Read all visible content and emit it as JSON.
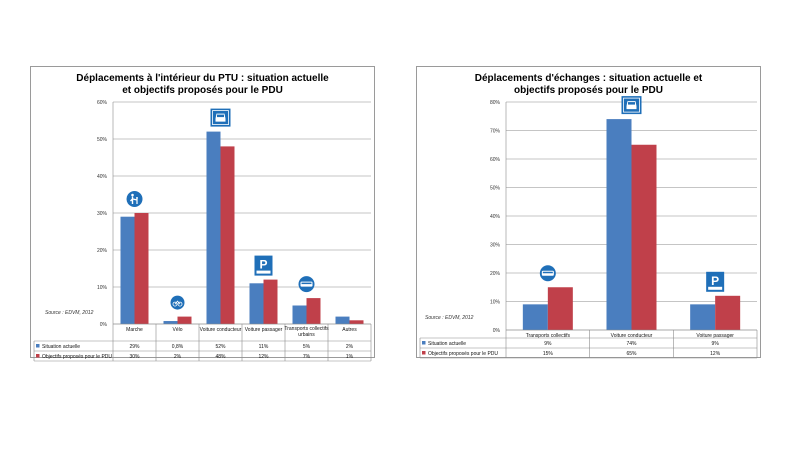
{
  "colors": {
    "situation": "#4a7ebf",
    "objectifs": "#c0404a",
    "grid": "#8c8c8c",
    "sign": "#1f6fb8"
  },
  "chart_data": [
    {
      "type": "bar",
      "title": "Déplacements à l'intérieur du PTU : situation actuelle et objectifs proposés pour le PDU",
      "source": "Source : EDVM, 2012",
      "categories": [
        "Marche",
        "Vélo",
        "Voiture conducteur",
        "Voiture passager",
        "Transports collectifs urbains",
        "Autres"
      ],
      "category_icons": [
        "pedestrian-sign-icon",
        "bicycle-sign-icon",
        "car-sign-icon",
        "parking-sign-icon",
        "bus-sign-icon",
        ""
      ],
      "series": [
        {
          "name": "Situation actuelle",
          "values": [
            29,
            0.8,
            52,
            11,
            5,
            2
          ],
          "labels": [
            "29%",
            "0,8%",
            "52%",
            "11%",
            "5%",
            "2%"
          ]
        },
        {
          "name": "Objectifs proposés pour le PDU",
          "values": [
            30,
            2,
            48,
            12,
            7,
            1
          ],
          "labels": [
            "30%",
            "2%",
            "48%",
            "12%",
            "7%",
            "1%"
          ]
        }
      ],
      "ylim": [
        0,
        60
      ],
      "yticks": [
        "0%",
        "10%",
        "20%",
        "30%",
        "40%",
        "50%",
        "60%"
      ],
      "grid": true,
      "legend": "table"
    },
    {
      "type": "bar",
      "title": "Déplacements d'échanges : situation actuelle et objectifs proposés pour le PDU",
      "source": "Source : EDVM, 2012",
      "categories": [
        "Transports collectifs",
        "Voiture conducteur",
        "Voiture passager"
      ],
      "category_icons": [
        "bus-sign-icon",
        "car-sign-icon",
        "parking-sign-icon"
      ],
      "series": [
        {
          "name": "Situation actuelle",
          "values": [
            9,
            74,
            9
          ],
          "labels": [
            "9%",
            "74%",
            "9%"
          ]
        },
        {
          "name": "Objectifs proposés pour le PDU",
          "values": [
            15,
            65,
            12
          ],
          "labels": [
            "15%",
            "65%",
            "12%"
          ]
        }
      ],
      "ylim": [
        0,
        80
      ],
      "yticks": [
        "0%",
        "10%",
        "20%",
        "30%",
        "40%",
        "50%",
        "60%",
        "70%",
        "80%"
      ],
      "grid": true,
      "legend": "table"
    }
  ]
}
